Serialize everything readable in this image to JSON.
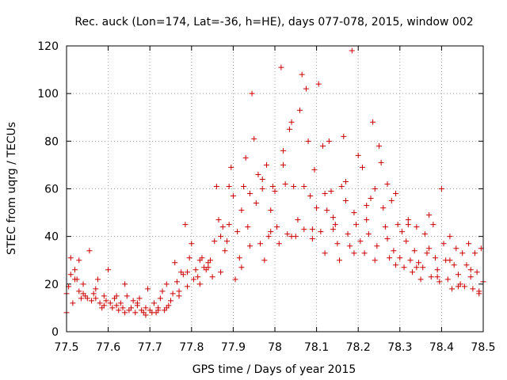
{
  "chart_data": {
    "type": "scatter",
    "title": "Rec. auck (Lon=174, Lat=-36, h=HE), days 077-078, 2015, window 002",
    "xlabel": "GPS time / Days of year 2015",
    "ylabel": "STEC from uqrg / TECUs",
    "xlim": [
      77.5,
      78.5
    ],
    "ylim": [
      0,
      120
    ],
    "xticks": [
      77.5,
      77.6,
      77.7,
      77.8,
      77.9,
      78,
      78.1,
      78.2,
      78.3,
      78.4,
      78.5
    ],
    "xtick_labels": [
      "77.5",
      "77.6",
      "77.7",
      "77.8",
      "77.9",
      "78",
      "78.1",
      "78.2",
      "78.3",
      "78.4",
      "78.5"
    ],
    "yticks": [
      0,
      20,
      40,
      60,
      80,
      100,
      120
    ],
    "ytick_labels": [
      "0",
      "20",
      "40",
      "60",
      "80",
      "100",
      "120"
    ],
    "grid": true,
    "marker": "+",
    "series": [
      {
        "name": "STEC",
        "color": "#cc0000",
        "points": [
          [
            77.5,
            8
          ],
          [
            77.5,
            16
          ],
          [
            77.505,
            19
          ],
          [
            77.51,
            24
          ],
          [
            77.51,
            31
          ],
          [
            77.515,
            12
          ],
          [
            77.52,
            26
          ],
          [
            77.525,
            22
          ],
          [
            77.53,
            17
          ],
          [
            77.53,
            30
          ],
          [
            77.535,
            14
          ],
          [
            77.54,
            20
          ],
          [
            77.545,
            15
          ],
          [
            77.55,
            14
          ],
          [
            77.555,
            34
          ],
          [
            77.56,
            13
          ],
          [
            77.565,
            16
          ],
          [
            77.57,
            14
          ],
          [
            77.575,
            22
          ],
          [
            77.58,
            12
          ],
          [
            77.585,
            10
          ],
          [
            77.59,
            15
          ],
          [
            77.595,
            13
          ],
          [
            77.6,
            26
          ],
          [
            77.605,
            12
          ],
          [
            77.61,
            10
          ],
          [
            77.615,
            14
          ],
          [
            77.62,
            11
          ],
          [
            77.625,
            9
          ],
          [
            77.63,
            12
          ],
          [
            77.635,
            10
          ],
          [
            77.64,
            20
          ],
          [
            77.645,
            15
          ],
          [
            77.65,
            9
          ],
          [
            77.655,
            10
          ],
          [
            77.66,
            13
          ],
          [
            77.665,
            8
          ],
          [
            77.67,
            11
          ],
          [
            77.675,
            14
          ],
          [
            77.68,
            9
          ],
          [
            77.685,
            8
          ],
          [
            77.69,
            10
          ],
          [
            77.695,
            18
          ],
          [
            77.7,
            9
          ],
          [
            77.705,
            8
          ],
          [
            77.71,
            12
          ],
          [
            77.715,
            8
          ],
          [
            77.72,
            10
          ],
          [
            77.725,
            14
          ],
          [
            77.73,
            17
          ],
          [
            77.735,
            9
          ],
          [
            77.74,
            20
          ],
          [
            77.745,
            11
          ],
          [
            77.75,
            13
          ],
          [
            77.755,
            16
          ],
          [
            77.76,
            29
          ],
          [
            77.765,
            21
          ],
          [
            77.77,
            15
          ],
          [
            77.775,
            25
          ],
          [
            77.78,
            24
          ],
          [
            77.785,
            45
          ],
          [
            77.79,
            19
          ],
          [
            77.795,
            31
          ],
          [
            77.8,
            37
          ],
          [
            77.805,
            22
          ],
          [
            77.81,
            26
          ],
          [
            77.815,
            23
          ],
          [
            77.82,
            20
          ],
          [
            77.825,
            31
          ],
          [
            77.83,
            27
          ],
          [
            77.835,
            26
          ],
          [
            77.84,
            29
          ],
          [
            77.845,
            30
          ],
          [
            77.85,
            23
          ],
          [
            77.855,
            38
          ],
          [
            77.86,
            61
          ],
          [
            77.865,
            47
          ],
          [
            77.87,
            25
          ],
          [
            77.875,
            44
          ],
          [
            77.88,
            34
          ],
          [
            77.885,
            38
          ],
          [
            77.89,
            61
          ],
          [
            77.895,
            69
          ],
          [
            77.9,
            57
          ],
          [
            77.905,
            22
          ],
          [
            77.91,
            42
          ],
          [
            77.915,
            31
          ],
          [
            77.92,
            27
          ],
          [
            77.925,
            61
          ],
          [
            77.93,
            73
          ],
          [
            77.935,
            44
          ],
          [
            77.94,
            58
          ],
          [
            77.945,
            100
          ],
          [
            77.95,
            81
          ],
          [
            77.955,
            54
          ],
          [
            77.96,
            66
          ],
          [
            77.965,
            37
          ],
          [
            77.97,
            60
          ],
          [
            77.975,
            30
          ],
          [
            77.98,
            70
          ],
          [
            77.985,
            40
          ],
          [
            77.99,
            51
          ],
          [
            77.995,
            61
          ],
          [
            78.0,
            59
          ],
          [
            78.005,
            44
          ],
          [
            78.01,
            37
          ],
          [
            78.015,
            111
          ],
          [
            78.02,
            76
          ],
          [
            78.025,
            62
          ],
          [
            78.03,
            41
          ],
          [
            78.035,
            85
          ],
          [
            78.04,
            88
          ],
          [
            78.045,
            61
          ],
          [
            78.05,
            40
          ],
          [
            78.055,
            47
          ],
          [
            78.06,
            93
          ],
          [
            78.065,
            108
          ],
          [
            78.07,
            43
          ],
          [
            78.075,
            102
          ],
          [
            78.08,
            80
          ],
          [
            78.085,
            57
          ],
          [
            78.09,
            43
          ],
          [
            78.095,
            68
          ],
          [
            78.1,
            52
          ],
          [
            78.105,
            104
          ],
          [
            78.11,
            42
          ],
          [
            78.115,
            78
          ],
          [
            78.12,
            33
          ],
          [
            78.125,
            51
          ],
          [
            78.13,
            80
          ],
          [
            78.135,
            59
          ],
          [
            78.14,
            48
          ],
          [
            78.145,
            45
          ],
          [
            78.15,
            37
          ],
          [
            78.155,
            30
          ],
          [
            78.16,
            61
          ],
          [
            78.165,
            82
          ],
          [
            78.17,
            55
          ],
          [
            78.175,
            41
          ],
          [
            78.18,
            36
          ],
          [
            78.185,
            118
          ],
          [
            78.19,
            50
          ],
          [
            78.195,
            45
          ],
          [
            78.2,
            74
          ],
          [
            78.205,
            38
          ],
          [
            78.21,
            69
          ],
          [
            78.215,
            33
          ],
          [
            78.22,
            47
          ],
          [
            78.225,
            41
          ],
          [
            78.23,
            56
          ],
          [
            78.235,
            88
          ],
          [
            78.24,
            60
          ],
          [
            78.245,
            36
          ],
          [
            78.25,
            78
          ],
          [
            78.255,
            71
          ],
          [
            78.26,
            52
          ],
          [
            78.265,
            44
          ],
          [
            78.27,
            39
          ],
          [
            78.275,
            31
          ],
          [
            78.28,
            55
          ],
          [
            78.285,
            34
          ],
          [
            78.29,
            58
          ],
          [
            78.295,
            45
          ],
          [
            78.3,
            31
          ],
          [
            78.305,
            42
          ],
          [
            78.31,
            27
          ],
          [
            78.315,
            38
          ],
          [
            78.32,
            47
          ],
          [
            78.325,
            30
          ],
          [
            78.33,
            25
          ],
          [
            78.335,
            34
          ],
          [
            78.34,
            44
          ],
          [
            78.345,
            29
          ],
          [
            78.35,
            22
          ],
          [
            78.355,
            27
          ],
          [
            78.36,
            41
          ],
          [
            78.365,
            33
          ],
          [
            78.37,
            49
          ],
          [
            78.375,
            23
          ],
          [
            78.38,
            45
          ],
          [
            78.385,
            31
          ],
          [
            78.39,
            26
          ],
          [
            78.395,
            21
          ],
          [
            78.4,
            60
          ],
          [
            78.405,
            37
          ],
          [
            78.41,
            30
          ],
          [
            78.415,
            22
          ],
          [
            78.42,
            40
          ],
          [
            78.425,
            18
          ],
          [
            78.43,
            28
          ],
          [
            78.435,
            35
          ],
          [
            78.44,
            24
          ],
          [
            78.445,
            20
          ],
          [
            78.45,
            33
          ],
          [
            78.455,
            19
          ],
          [
            78.46,
            28
          ],
          [
            78.465,
            37
          ],
          [
            78.47,
            23
          ],
          [
            78.475,
            18
          ],
          [
            78.48,
            33
          ],
          [
            78.485,
            25
          ],
          [
            78.49,
            16
          ],
          [
            78.495,
            35
          ],
          [
            78.5,
            21
          ],
          [
            77.52,
            22
          ],
          [
            77.57,
            18
          ],
          [
            77.62,
            15
          ],
          [
            77.67,
            12
          ],
          [
            77.72,
            9
          ],
          [
            77.77,
            17
          ],
          [
            77.82,
            30
          ],
          [
            77.87,
            40
          ],
          [
            77.92,
            51
          ],
          [
            77.97,
            64
          ],
          [
            78.02,
            70
          ],
          [
            78.07,
            61
          ],
          [
            78.12,
            58
          ],
          [
            78.17,
            63
          ],
          [
            78.22,
            53
          ],
          [
            78.27,
            62
          ],
          [
            78.32,
            45
          ],
          [
            78.37,
            35
          ],
          [
            78.42,
            30
          ],
          [
            78.47,
            26
          ],
          [
            77.54,
            16
          ],
          [
            77.59,
            11
          ],
          [
            77.64,
            8
          ],
          [
            77.69,
            7
          ],
          [
            77.74,
            10
          ],
          [
            77.79,
            25
          ],
          [
            77.84,
            27
          ],
          [
            77.89,
            45
          ],
          [
            77.94,
            36
          ],
          [
            77.99,
            42
          ],
          [
            78.04,
            40
          ],
          [
            78.09,
            39
          ],
          [
            78.14,
            43
          ],
          [
            78.19,
            33
          ],
          [
            78.24,
            30
          ],
          [
            78.29,
            28
          ],
          [
            78.34,
            27
          ],
          [
            78.39,
            23
          ],
          [
            78.44,
            19
          ],
          [
            78.49,
            17
          ]
        ]
      }
    ]
  }
}
